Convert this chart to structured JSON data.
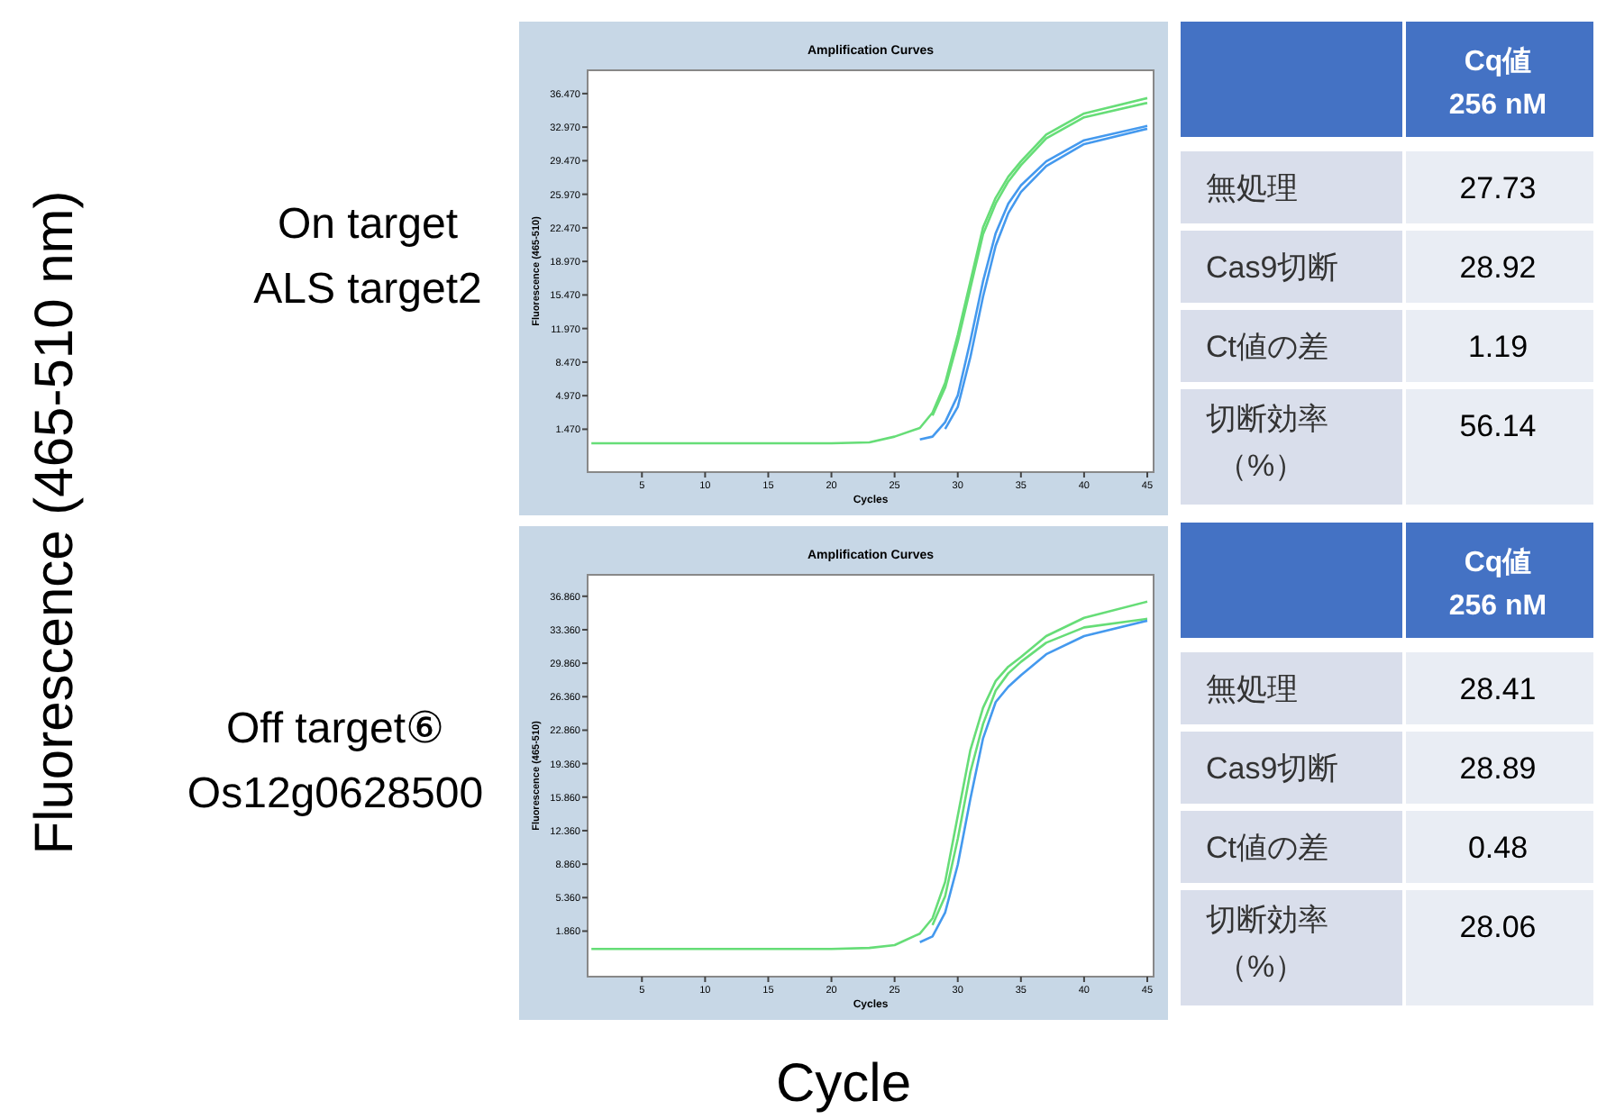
{
  "chart_data": [
    {
      "type": "line",
      "title": "Amplification Curves",
      "subtitle": "On target\nALS target2",
      "xlabel": "Cycles",
      "ylabel": "Fluorescence (465-510)",
      "annotations": [
        "Fluorescence (465-510 nm)",
        "Cycle"
      ],
      "x": [
        1,
        5,
        10,
        15,
        20,
        23,
        25,
        27,
        28,
        29,
        30,
        31,
        32,
        33,
        34,
        35,
        37,
        40,
        45
      ],
      "xlim": [
        0.7,
        45.5
      ],
      "xticks": [
        5,
        10,
        15,
        20,
        25,
        30,
        35,
        40,
        45
      ],
      "ylim": [
        -3,
        38.9
      ],
      "yticks": [
        {
          "value": 1.47,
          "label": "1.470"
        },
        {
          "value": 4.97,
          "label": "4.970"
        },
        {
          "value": 8.47,
          "label": "8.470"
        },
        {
          "value": 11.97,
          "label": "11.970"
        },
        {
          "value": 15.47,
          "label": "15.470"
        },
        {
          "value": 18.97,
          "label": "18.970"
        },
        {
          "value": 22.47,
          "label": "22.470"
        },
        {
          "value": 25.97,
          "label": "25.970"
        },
        {
          "value": 29.47,
          "label": "29.470"
        },
        {
          "value": 32.97,
          "label": "32.970"
        },
        {
          "value": 36.47,
          "label": "36.470"
        }
      ],
      "grid": false,
      "marker": "none",
      "line_style": "solid",
      "series": [
        {
          "color": "#66dd77",
          "values": [
            null,
            null,
            null,
            null,
            null,
            null,
            null,
            null,
            2.9,
            5.8,
            10.6,
            16.2,
            21.8,
            25.0,
            27.3,
            29.0,
            31.8,
            34.0,
            35.5
          ]
        },
        {
          "color": "#4499ee",
          "values": [
            null,
            null,
            null,
            null,
            null,
            null,
            null,
            0.4,
            0.7,
            2.2,
            5.0,
            10.7,
            16.9,
            21.9,
            25.0,
            26.9,
            29.4,
            31.6,
            33.1
          ]
        },
        {
          "color": "#4499ee",
          "values": [
            null,
            null,
            null,
            null,
            null,
            null,
            null,
            null,
            null,
            1.5,
            3.8,
            9.0,
            15.3,
            20.6,
            24.0,
            26.2,
            28.9,
            31.2,
            32.8
          ]
        },
        {
          "color": "#66dd77",
          "values": [
            0,
            0,
            0,
            0,
            0,
            0.1,
            0.7,
            1.6,
            3.2,
            6.3,
            11.3,
            16.9,
            22.5,
            25.6,
            27.8,
            29.4,
            32.2,
            34.4,
            36.0
          ]
        }
      ]
    },
    {
      "type": "other",
      "title": "Cq値\n256 nM",
      "categories": [
        "無処理",
        "Cas9切断",
        "Ct値の差",
        "切断効率（%）"
      ],
      "values": [
        27.73,
        28.92,
        1.19,
        56.14
      ],
      "data_labels": true
    },
    {
      "type": "line",
      "title": "Amplification Curves",
      "subtitle": "Off target⑥\nOs12g0628500",
      "xlabel": "Cycles",
      "ylabel": "Fluorescence (465-510)",
      "x": [
        1,
        5,
        10,
        15,
        20,
        23,
        25,
        27,
        28,
        29,
        30,
        31,
        32,
        33,
        34,
        35,
        37,
        40,
        45
      ],
      "xlim": [
        0.7,
        45.5
      ],
      "xticks": [
        5,
        10,
        15,
        20,
        25,
        30,
        35,
        40,
        45
      ],
      "ylim": [
        -2.9,
        39.1
      ],
      "yticks": [
        {
          "value": 1.86,
          "label": "1.860"
        },
        {
          "value": 5.36,
          "label": "5.360"
        },
        {
          "value": 8.86,
          "label": "8.860"
        },
        {
          "value": 12.36,
          "label": "12.360"
        },
        {
          "value": 15.86,
          "label": "15.860"
        },
        {
          "value": 19.36,
          "label": "19.360"
        },
        {
          "value": 22.86,
          "label": "22.860"
        },
        {
          "value": 26.36,
          "label": "26.360"
        },
        {
          "value": 29.86,
          "label": "29.860"
        },
        {
          "value": 33.36,
          "label": "33.360"
        },
        {
          "value": 36.86,
          "label": "36.860"
        }
      ],
      "grid": false,
      "marker": "none",
      "line_style": "solid",
      "series": [
        {
          "color": "#66dd77",
          "values": [
            null,
            null,
            null,
            null,
            null,
            null,
            null,
            null,
            2.5,
            5.5,
            11.5,
            18.5,
            23.5,
            27.0,
            28.8,
            30.0,
            32.0,
            33.6,
            34.5
          ]
        },
        {
          "color": "#4499ee",
          "values": [
            null,
            null,
            null,
            null,
            null,
            null,
            null,
            0.7,
            1.3,
            3.8,
            8.8,
            15.7,
            22.0,
            25.8,
            27.4,
            28.6,
            30.8,
            32.7,
            34.3
          ]
        },
        {
          "color": "#66dd77",
          "values": [
            0,
            0,
            0,
            0,
            0,
            0.1,
            0.4,
            1.6,
            3.2,
            7.0,
            13.9,
            20.8,
            25.2,
            28.0,
            29.5,
            30.5,
            32.7,
            34.6,
            36.3
          ]
        }
      ]
    },
    {
      "type": "other",
      "title": "Cq値\n256 nM",
      "categories": [
        "無処理",
        "Cas9切断",
        "Ct値の差",
        "切断効率（%）"
      ],
      "values": [
        28.41,
        28.89,
        0.48,
        28.06
      ],
      "data_labels": true
    }
  ]
}
